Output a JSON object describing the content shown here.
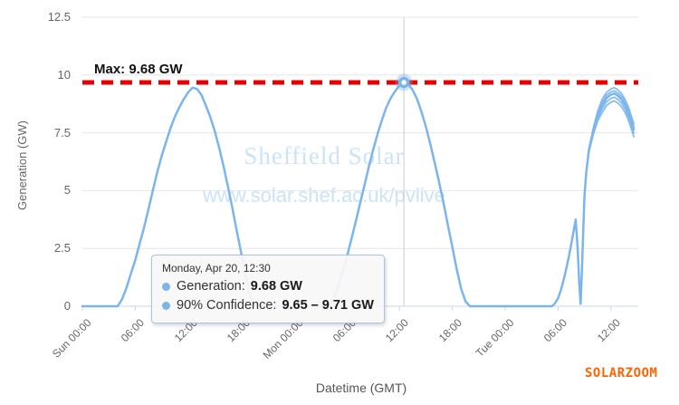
{
  "chart_data": {
    "type": "line",
    "title": "",
    "xlabel": "Datetime (GMT)",
    "ylabel": "Generation (GW)",
    "ylim": [
      0,
      12.5
    ],
    "x_hours_max": 63.1,
    "grid": "horizontal-only",
    "legend": "none",
    "yticks": [
      {
        "value": 12.5,
        "label": "12.5"
      },
      {
        "value": 10,
        "label": "10"
      },
      {
        "value": 7.5,
        "label": "7.5"
      },
      {
        "value": 5,
        "label": "5"
      },
      {
        "value": 2.5,
        "label": "2.5"
      },
      {
        "value": 0,
        "label": "0"
      }
    ],
    "xticks": [
      {
        "hour": 0,
        "label": "Sun 00:00"
      },
      {
        "hour": 6,
        "label": "06:00"
      },
      {
        "hour": 12,
        "label": "12:00"
      },
      {
        "hour": 18,
        "label": "18:00"
      },
      {
        "hour": 24,
        "label": "Mon 00:00"
      },
      {
        "hour": 30,
        "label": "06:00"
      },
      {
        "hour": 36,
        "label": "12:00"
      },
      {
        "hour": 42,
        "label": "18:00"
      },
      {
        "hour": 48,
        "label": "Tue 00:00"
      },
      {
        "hour": 54,
        "label": "06:00"
      },
      {
        "hour": 60,
        "label": "12:00"
      }
    ],
    "max_line": {
      "value": 9.68,
      "label": "Max: 9.68 GW",
      "color": "#e80000"
    },
    "series": [
      {
        "name": "Generation",
        "color": "#7cb5ec",
        "points_hour_gw": [
          [
            0,
            0
          ],
          [
            4,
            0
          ],
          [
            4.5,
            0.3
          ],
          [
            5,
            0.8
          ],
          [
            5.5,
            1.4
          ],
          [
            6,
            2.0
          ],
          [
            6.5,
            2.7
          ],
          [
            7,
            3.4
          ],
          [
            7.5,
            4.2
          ],
          [
            8,
            5.0
          ],
          [
            8.5,
            5.8
          ],
          [
            9,
            6.5
          ],
          [
            9.5,
            7.1
          ],
          [
            10,
            7.7
          ],
          [
            10.5,
            8.2
          ],
          [
            11,
            8.6
          ],
          [
            11.5,
            8.95
          ],
          [
            12,
            9.25
          ],
          [
            12.5,
            9.45
          ],
          [
            13,
            9.4
          ],
          [
            13.5,
            9.15
          ],
          [
            14,
            8.7
          ],
          [
            14.5,
            8.2
          ],
          [
            15,
            7.6
          ],
          [
            15.5,
            6.9
          ],
          [
            16,
            6.1
          ],
          [
            16.5,
            5.2
          ],
          [
            17,
            4.3
          ],
          [
            17.5,
            3.3
          ],
          [
            18,
            2.35
          ],
          [
            18.5,
            1.4
          ],
          [
            19,
            0.55
          ],
          [
            19.5,
            0.05
          ],
          [
            20,
            0
          ],
          [
            28,
            0
          ],
          [
            28.5,
            0.3
          ],
          [
            29,
            0.8
          ],
          [
            29.5,
            1.45
          ],
          [
            30,
            2.1
          ],
          [
            30.5,
            2.85
          ],
          [
            31,
            3.6
          ],
          [
            31.5,
            4.4
          ],
          [
            32,
            5.2
          ],
          [
            32.5,
            6.0
          ],
          [
            33,
            6.75
          ],
          [
            33.5,
            7.45
          ],
          [
            34,
            8.05
          ],
          [
            34.5,
            8.6
          ],
          [
            35,
            9.0
          ],
          [
            35.5,
            9.3
          ],
          [
            36,
            9.55
          ],
          [
            36.5,
            9.68
          ],
          [
            37,
            9.6
          ],
          [
            37.5,
            9.35
          ],
          [
            38,
            8.95
          ],
          [
            38.5,
            8.4
          ],
          [
            39,
            7.75
          ],
          [
            39.5,
            7.0
          ],
          [
            40,
            6.2
          ],
          [
            40.5,
            5.35
          ],
          [
            41,
            4.45
          ],
          [
            41.5,
            3.5
          ],
          [
            42,
            2.55
          ],
          [
            42.5,
            1.6
          ],
          [
            43,
            0.75
          ],
          [
            43.5,
            0.2
          ],
          [
            44,
            0
          ],
          [
            53.3,
            0
          ],
          [
            53.6,
            0.1
          ],
          [
            54,
            0.35
          ],
          [
            54.4,
            0.8
          ],
          [
            54.8,
            1.4
          ],
          [
            55.2,
            2.1
          ],
          [
            55.6,
            2.9
          ],
          [
            56,
            3.75
          ],
          [
            56.2,
            2.6
          ],
          [
            56.4,
            1.0
          ],
          [
            56.55,
            0.1
          ],
          [
            56.7,
            1.5
          ],
          [
            56.85,
            3.2
          ],
          [
            57,
            4.8
          ],
          [
            57.2,
            5.8
          ],
          [
            57.5,
            6.75
          ],
          [
            58,
            7.6
          ],
          [
            58.5,
            8.25
          ],
          [
            59,
            8.7
          ],
          [
            59.5,
            9.0
          ],
          [
            60,
            9.15
          ],
          [
            60.4,
            9.2
          ],
          [
            60.8,
            9.1
          ],
          [
            61.2,
            8.95
          ],
          [
            61.6,
            8.7
          ],
          [
            62,
            8.35
          ],
          [
            62.3,
            8.0
          ],
          [
            62.6,
            7.65
          ]
        ]
      }
    ],
    "ensemble": {
      "start_hour": 56.55,
      "ramp_start": 57,
      "ramp_hours": 2,
      "offsets_gw": [
        -0.32,
        -0.16,
        0.12,
        0.25
      ]
    },
    "selected_point": {
      "hour": 36.5,
      "value": 9.68,
      "confidence_low": 9.65,
      "confidence_high": 9.71
    }
  },
  "tooltip": {
    "title": "Monday, Apr 20, 12:30",
    "rows": [
      {
        "label": "Generation:",
        "value": "9.68 GW"
      },
      {
        "label": "90% Confidence:",
        "value": "9.65 – 9.71 GW"
      }
    ]
  },
  "watermark": {
    "line1": "Sheffield Solar",
    "line2": "www.solar.shef.ac.uk/pvlive",
    "color": "#cbe3f9"
  },
  "branding": {
    "watermark": "SOLARZOOM",
    "color": "#ff6200"
  },
  "colors": {
    "line": "#7cb5ec",
    "grid": "#e6e6e6",
    "axis": "#ccd6eb",
    "crosshair": "#cccccc",
    "max_line": "#e80000"
  }
}
